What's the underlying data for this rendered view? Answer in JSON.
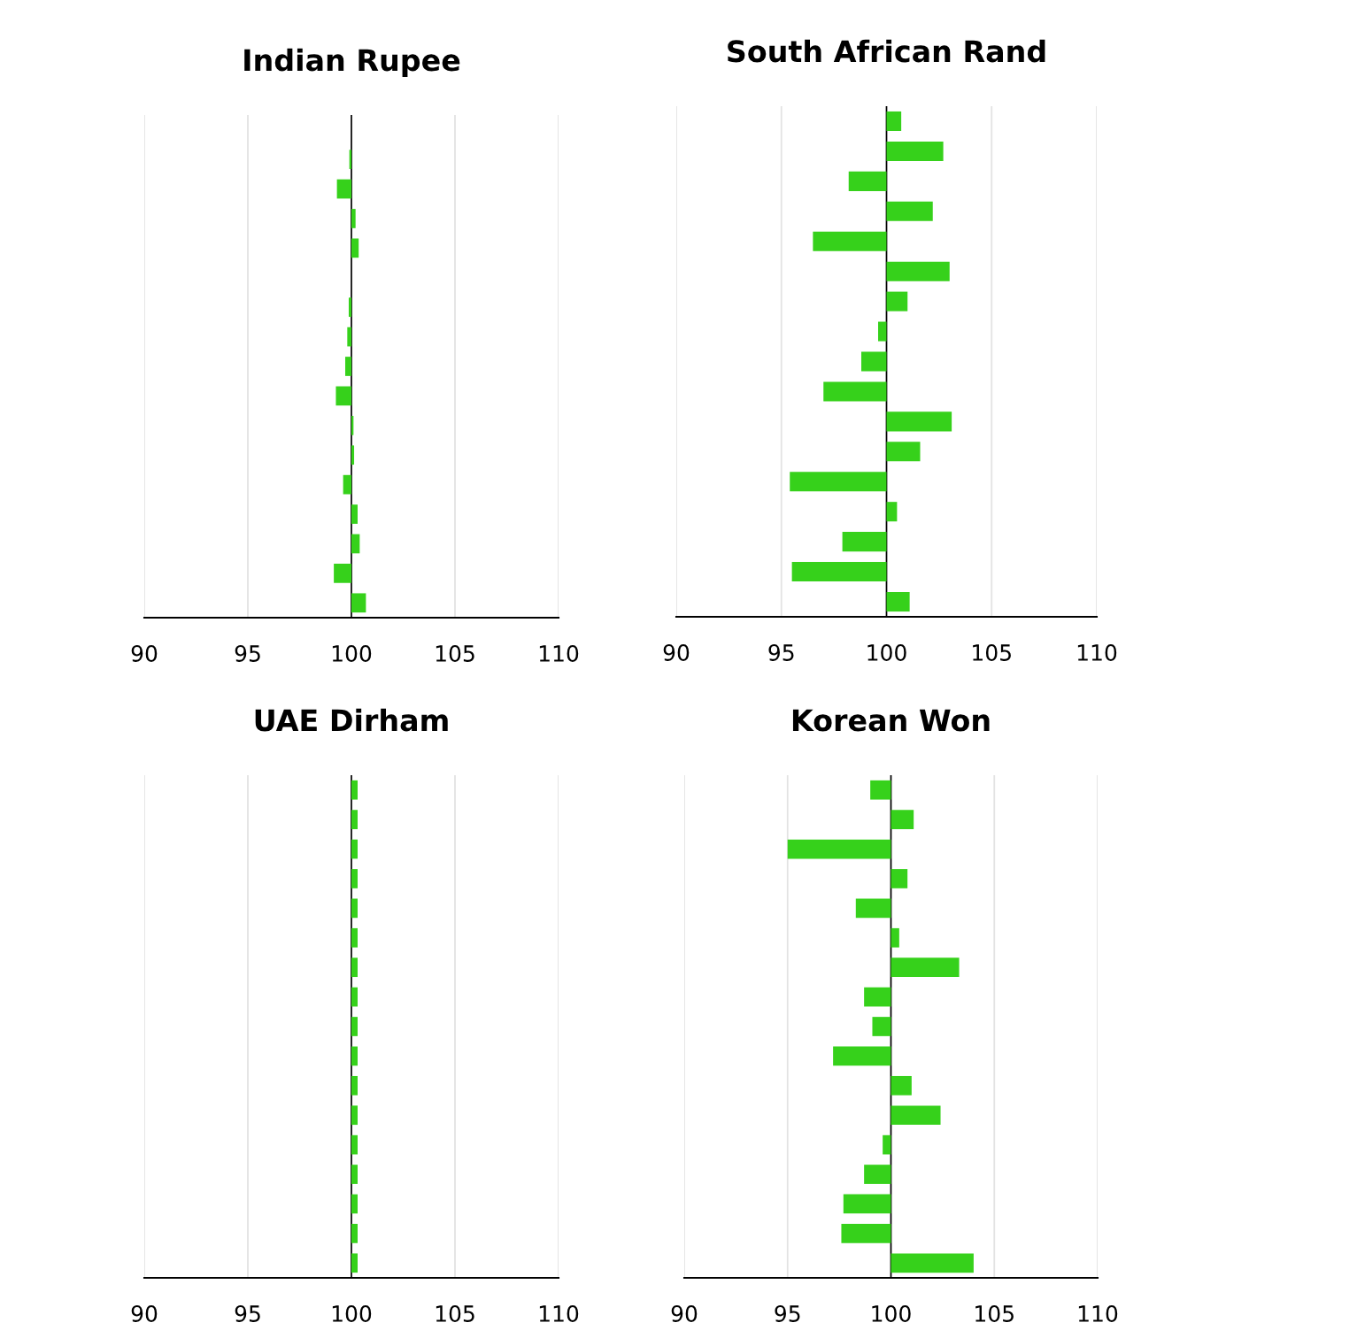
{
  "chart_data": [
    {
      "type": "bar",
      "title": "Indian Rupee",
      "orientation": "horizontal",
      "categories": [
        null,
        null,
        null,
        null,
        null,
        null,
        null,
        null,
        null,
        null,
        null,
        null,
        null,
        null,
        null,
        null,
        null
      ],
      "base": [
        null,
        100,
        100,
        100,
        100,
        null,
        100,
        100,
        100,
        100,
        100,
        100,
        100,
        100,
        100,
        100,
        100
      ],
      "values": [
        null,
        -0.1,
        -0.7,
        0.2,
        0.35,
        null,
        -0.13,
        -0.2,
        -0.3,
        -0.75,
        0.1,
        0.13,
        -0.4,
        0.3,
        0.4,
        -0.85,
        0.7
      ],
      "color": "#36d11b",
      "xlim": [
        90,
        110
      ],
      "xticks": [
        90,
        95,
        100,
        105,
        110
      ],
      "grid": "x",
      "tick_labels": "x",
      "ref_lines": [
        {
          "axis": "x",
          "value": 100,
          "color": "#000000"
        }
      ]
    },
    {
      "type": "bar",
      "title": "South African Rand",
      "orientation": "horizontal",
      "categories": [
        null,
        null,
        null,
        null,
        null,
        null,
        null,
        null,
        null,
        null,
        null,
        null,
        null,
        null,
        null,
        null,
        null
      ],
      "base": [
        100,
        100,
        100,
        100,
        100,
        100,
        100,
        100,
        100,
        100,
        100,
        100,
        100,
        100,
        100,
        100,
        100
      ],
      "values": [
        0.7,
        2.7,
        -1.8,
        2.2,
        -3.5,
        3.0,
        1.0,
        -0.4,
        -1.2,
        -3.0,
        3.1,
        1.6,
        -4.6,
        0.5,
        -2.1,
        -4.5,
        1.1
      ],
      "color": "#36d11b",
      "xlim": [
        90,
        110
      ],
      "xticks": [
        90,
        95,
        100,
        105,
        110
      ],
      "grid": "x",
      "tick_labels": "x",
      "ref_lines": [
        {
          "axis": "x",
          "value": 100,
          "color": "#000000"
        }
      ]
    },
    {
      "type": "bar",
      "title": "UAE Dirham",
      "orientation": "horizontal",
      "categories": [
        null,
        null,
        null,
        null,
        null,
        null,
        null,
        null,
        null,
        null,
        null,
        null,
        null,
        null,
        null,
        null,
        null
      ],
      "base": [
        100,
        100,
        100,
        100,
        100,
        100,
        100,
        100,
        100,
        100,
        100,
        100,
        100,
        100,
        100,
        100,
        100
      ],
      "values": [
        0.3,
        0.3,
        0.3,
        0.3,
        0.3,
        0.3,
        0.3,
        0.3,
        0.3,
        0.3,
        0.3,
        0.3,
        0.3,
        0.3,
        0.3,
        0.3,
        0.3
      ],
      "color": "#36d11b",
      "xlim": [
        90,
        110
      ],
      "xticks": [
        90,
        95,
        100,
        105,
        110
      ],
      "grid": "x",
      "tick_labels": "x",
      "ref_lines": [
        {
          "axis": "x",
          "value": 100,
          "color": "#000000"
        }
      ]
    },
    {
      "type": "bar",
      "title": "Korean Won",
      "orientation": "horizontal",
      "categories": [
        null,
        null,
        null,
        null,
        null,
        null,
        null,
        null,
        null,
        null,
        null,
        null,
        null,
        null,
        null,
        null,
        null
      ],
      "base": [
        100,
        100,
        100,
        100,
        100,
        100,
        100,
        100,
        100,
        100,
        100,
        100,
        100,
        100,
        100,
        100,
        100
      ],
      "values": [
        -1.0,
        1.1,
        -5.0,
        0.8,
        -1.7,
        0.4,
        3.3,
        -1.3,
        -0.9,
        -2.8,
        1.0,
        2.4,
        -0.4,
        -1.3,
        -2.3,
        -2.4,
        4.0
      ],
      "color": "#36d11b",
      "xlim": [
        90,
        110
      ],
      "xticks": [
        90,
        95,
        100,
        105,
        110
      ],
      "grid": "x",
      "tick_labels": "x",
      "ref_lines": [
        {
          "axis": "x",
          "value": 100,
          "color": "#000000"
        }
      ]
    }
  ]
}
